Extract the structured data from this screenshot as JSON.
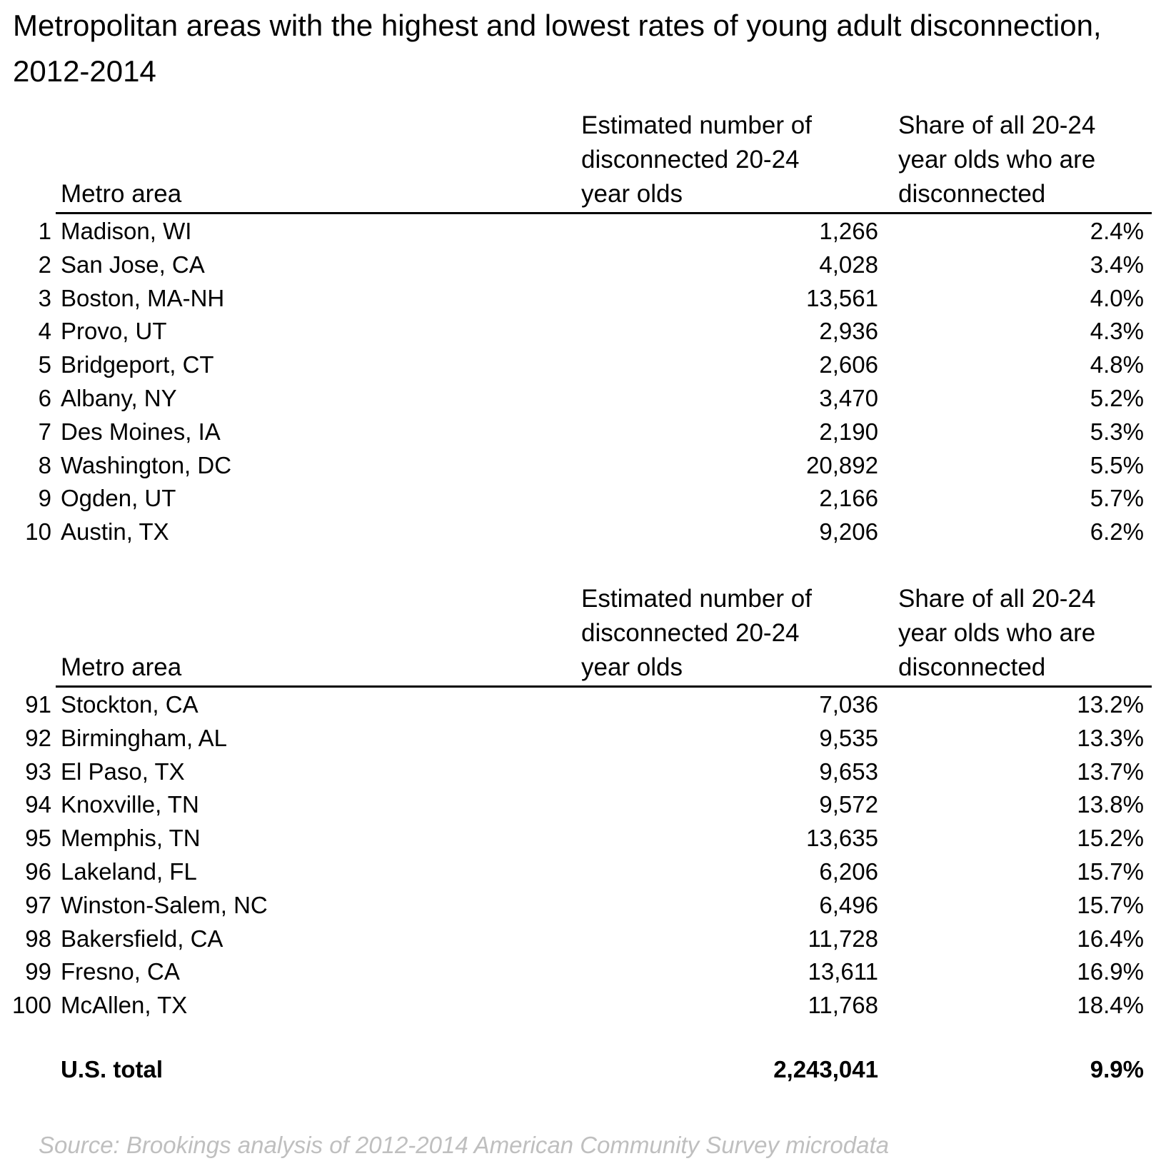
{
  "title": "Metropolitan areas with the highest and lowest rates of young adult disconnection, 2012-2014",
  "headers": {
    "metro": "Metro area",
    "number": [
      "Estimated number of",
      "disconnected 20-24",
      "year olds"
    ],
    "share": [
      "Share of all 20-24",
      "year olds who are",
      "disconnected"
    ]
  },
  "lowest": [
    {
      "rank": "1",
      "metro": "Madison, WI",
      "number": "1,266",
      "share": "2.4%"
    },
    {
      "rank": "2",
      "metro": "San Jose, CA",
      "number": "4,028",
      "share": "3.4%"
    },
    {
      "rank": "3",
      "metro": "Boston, MA-NH",
      "number": "13,561",
      "share": "4.0%"
    },
    {
      "rank": "4",
      "metro": "Provo, UT",
      "number": "2,936",
      "share": "4.3%"
    },
    {
      "rank": "5",
      "metro": "Bridgeport, CT",
      "number": "2,606",
      "share": "4.8%"
    },
    {
      "rank": "6",
      "metro": "Albany, NY",
      "number": "3,470",
      "share": "5.2%"
    },
    {
      "rank": "7",
      "metro": "Des Moines, IA",
      "number": "2,190",
      "share": "5.3%"
    },
    {
      "rank": "8",
      "metro": "Washington, DC",
      "number": "20,892",
      "share": "5.5%"
    },
    {
      "rank": "9",
      "metro": "Ogden, UT",
      "number": "2,166",
      "share": "5.7%"
    },
    {
      "rank": "10",
      "metro": "Austin, TX",
      "number": "9,206",
      "share": "6.2%"
    }
  ],
  "highest": [
    {
      "rank": "91",
      "metro": "Stockton, CA",
      "number": "7,036",
      "share": "13.2%"
    },
    {
      "rank": "92",
      "metro": "Birmingham, AL",
      "number": "9,535",
      "share": "13.3%"
    },
    {
      "rank": "93",
      "metro": "El Paso, TX",
      "number": "9,653",
      "share": "13.7%"
    },
    {
      "rank": "94",
      "metro": "Knoxville, TN",
      "number": "9,572",
      "share": "13.8%"
    },
    {
      "rank": "95",
      "metro": "Memphis, TN",
      "number": "13,635",
      "share": "15.2%"
    },
    {
      "rank": "96",
      "metro": "Lakeland, FL",
      "number": "6,206",
      "share": "15.7%"
    },
    {
      "rank": "97",
      "metro": "Winston-Salem, NC",
      "number": "6,496",
      "share": "15.7%"
    },
    {
      "rank": "98",
      "metro": "Bakersfield, CA",
      "number": "11,728",
      "share": "16.4%"
    },
    {
      "rank": "99",
      "metro": "Fresno, CA",
      "number": "13,611",
      "share": "16.9%"
    },
    {
      "rank": "100",
      "metro": "McAllen, TX",
      "number": "11,768",
      "share": "18.4%"
    }
  ],
  "total": {
    "label": "U.S. total",
    "number": "2,243,041",
    "share": "9.9%"
  },
  "source": "Source: Brookings analysis of 2012-2014 American Community Survey microdata"
}
